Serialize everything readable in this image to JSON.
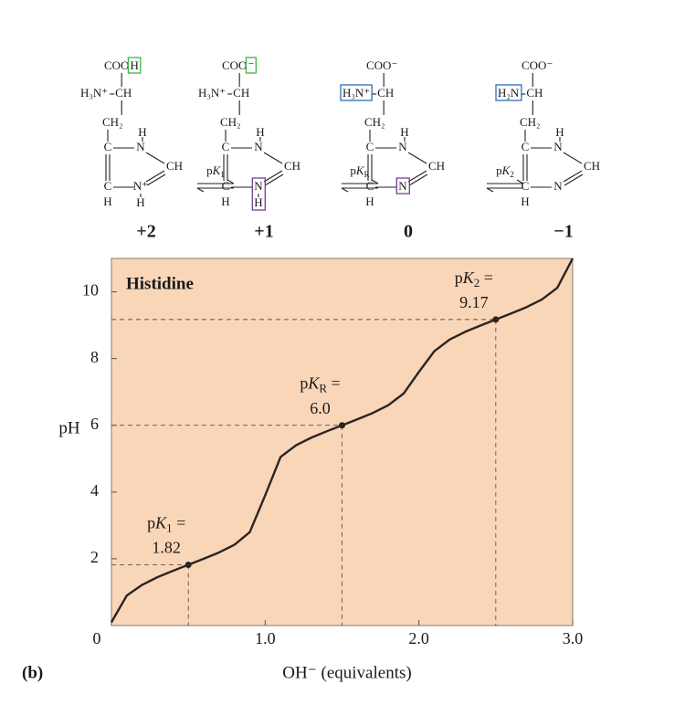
{
  "structures": [
    {
      "carboxyl": "COO",
      "carboxyl_end": "H",
      "amine": "H₃N⁺",
      "alpha": "CH",
      "beta": "CH₂",
      "ring_c1": "C",
      "ring_n1": "N",
      "ring_n1_h": "H",
      "ring_ch": "CH",
      "ring_c2": "C",
      "ring_c2_h": "H",
      "ring_n2": "N⁺",
      "ring_n2_h": "H",
      "charge": "+2"
    },
    {
      "carboxyl": "COO",
      "carboxyl_end": "⁻",
      "amine": "H₃N⁺",
      "alpha": "CH",
      "beta": "CH₂",
      "ring_c1": "C",
      "ring_n1": "N",
      "ring_n1_h": "H",
      "ring_ch": "CH",
      "ring_c2": "C",
      "ring_c2_h": "H",
      "ring_n2": "N",
      "ring_n2_h": "H",
      "charge": "+1"
    },
    {
      "carboxyl": "COO⁻",
      "amine": "H₃N⁺",
      "alpha": "CH",
      "beta": "CH₂",
      "ring_c1": "C",
      "ring_n1": "N",
      "ring_n1_h": "H",
      "ring_ch": "CH",
      "ring_c2": "C",
      "ring_c2_h": "H",
      "ring_n2": "N",
      "charge": "0"
    },
    {
      "carboxyl": "COO⁻",
      "amine": "H₂N",
      "alpha": "CH",
      "beta": "CH₂",
      "ring_c1": "C",
      "ring_n1": "N",
      "ring_n1_h": "H",
      "ring_ch": "CH",
      "ring_c2": "C",
      "ring_c2_h": "H",
      "ring_n2": "N",
      "charge": "−1"
    }
  ],
  "equilibria": [
    {
      "prefix": "p",
      "symbol": "K",
      "subscript": "1"
    },
    {
      "prefix": "p",
      "symbol": "K",
      "subscript": "R"
    },
    {
      "prefix": "p",
      "symbol": "K",
      "subscript": "2"
    }
  ],
  "chart_data": {
    "type": "line",
    "title": "Histidine",
    "panel_label": "(b)",
    "x_label": "OH⁻ (equivalents)",
    "y_label": "pH",
    "x": [
      0,
      0.1,
      0.2,
      0.3,
      0.4,
      0.5,
      0.6,
      0.7,
      0.8,
      0.9,
      1.0,
      1.1,
      1.2,
      1.3,
      1.4,
      1.5,
      1.6,
      1.7,
      1.8,
      1.9,
      2.0,
      2.1,
      2.2,
      2.3,
      2.4,
      2.5,
      2.6,
      2.7,
      2.8,
      2.9,
      3.0
    ],
    "series": [
      {
        "color": "#2a2522",
        "values": [
          0.1,
          0.9,
          1.22,
          1.45,
          1.64,
          1.82,
          2.0,
          2.19,
          2.42,
          2.8,
          3.9,
          5.05,
          5.4,
          5.63,
          5.82,
          6.0,
          6.18,
          6.37,
          6.6,
          6.95,
          7.6,
          8.22,
          8.57,
          8.8,
          8.99,
          9.17,
          9.35,
          9.54,
          9.77,
          10.12,
          11.0
        ]
      }
    ],
    "xlim": [
      0,
      3
    ],
    "ylim": [
      0,
      11
    ],
    "xticks": [
      0,
      {
        "value": 1,
        "label": "1.0"
      },
      {
        "value": 2,
        "label": "2.0"
      },
      {
        "value": 3,
        "label": "3.0"
      }
    ],
    "yticks": [
      2,
      4,
      6,
      8,
      10
    ],
    "background": "#f9d6b8",
    "annotations": [
      {
        "prefix": "p",
        "symbol": "K",
        "subscript": "1",
        "suffix": " =",
        "x": 0.5,
        "y": 1.82,
        "value_label": "1.82"
      },
      {
        "prefix": "p",
        "symbol": "K",
        "subscript": "R",
        "suffix": " =",
        "x": 1.5,
        "y": 6.0,
        "value_label": "6.0"
      },
      {
        "prefix": "p",
        "symbol": "K",
        "subscript": "2",
        "suffix": " =",
        "x": 2.5,
        "y": 9.17,
        "value_label": "9.17"
      }
    ]
  }
}
